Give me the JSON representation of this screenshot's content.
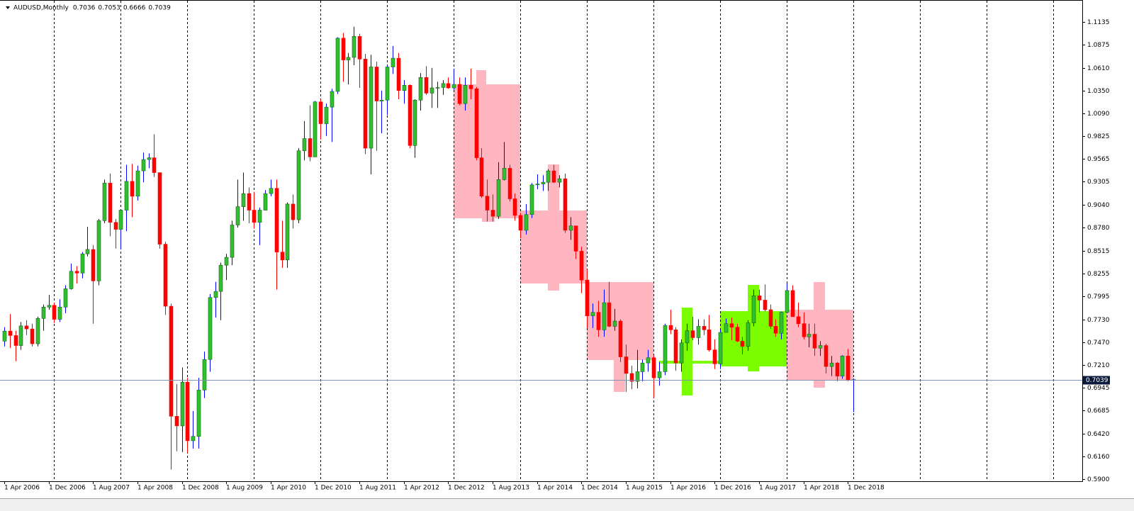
{
  "chart_data": {
    "type": "candlestick",
    "title": "AUDUSD,Monthly",
    "up_color": "#2fbf2f",
    "down_color": "#ff0000",
    "up_wick_color": "#0000ff",
    "price_line_color": "#7f93b0",
    "ylim": [
      0.5876,
      1.1346
    ],
    "yticks": [
      1.1135,
      1.0875,
      {
        "value": 1.061,
        "label": "1.0610"
      },
      {
        "value": 1.035,
        "label": "1.0350"
      },
      {
        "value": 1.009,
        "label": "1.0090"
      },
      0.9825,
      0.9565,
      0.9305,
      {
        "value": 0.904,
        "label": "0.9040"
      },
      {
        "value": 0.878,
        "label": "0.8780"
      },
      0.8515,
      0.8255,
      0.7995,
      {
        "value": 0.773,
        "label": "0.7730"
      },
      {
        "value": 0.747,
        "label": "0.7470"
      },
      {
        "value": 0.721,
        "label": "0.7210"
      },
      0.6945,
      0.6685,
      {
        "value": 0.642,
        "label": "0.6420"
      },
      {
        "value": 0.616,
        "label": "0.6160"
      },
      {
        "value": 0.59,
        "label": "0.5900"
      }
    ],
    "categories": [
      "1 Apr 2006",
      null,
      null,
      null,
      null,
      null,
      null,
      null,
      "1 Dec 2006",
      null,
      null,
      null,
      null,
      null,
      null,
      null,
      "1 Aug 2007",
      null,
      null,
      null,
      null,
      null,
      null,
      null,
      "1 Apr 2008",
      null,
      null,
      null,
      null,
      null,
      null,
      null,
      "1 Dec 2008",
      null,
      null,
      null,
      null,
      null,
      null,
      null,
      "1 Aug 2009",
      null,
      null,
      null,
      null,
      null,
      null,
      null,
      "1 Apr 2010",
      null,
      null,
      null,
      null,
      null,
      null,
      null,
      "1 Dec 2010",
      null,
      null,
      null,
      null,
      null,
      null,
      null,
      "1 Aug 2011",
      null,
      null,
      null,
      null,
      null,
      null,
      null,
      "1 Apr 2012",
      null,
      null,
      null,
      null,
      null,
      null,
      null,
      "1 Dec 2012",
      null,
      null,
      null,
      null,
      null,
      null,
      null,
      "1 Aug 2013",
      null,
      null,
      null,
      null,
      null,
      null,
      null,
      "1 Apr 2014",
      null,
      null,
      null,
      null,
      null,
      null,
      null,
      "1 Dec 2014",
      null,
      null,
      null,
      null,
      null,
      null,
      null,
      "1 Aug 2015",
      null,
      null,
      null,
      null,
      null,
      null,
      null,
      "1 Apr 2016",
      null,
      null,
      null,
      null,
      null,
      null,
      null,
      "1 Dec 2016",
      null,
      null,
      null,
      null,
      null,
      null,
      null,
      "1 Aug 2017",
      null,
      null,
      null,
      null,
      null,
      null,
      null,
      "1 Apr 2018",
      null,
      null,
      null,
      null,
      null,
      null,
      null,
      "1 Dec 2018",
      null
    ],
    "open": [
      0.748,
      0.7595,
      0.7545,
      0.743,
      0.7655,
      0.762,
      0.745,
      0.774,
      0.787,
      0.789,
      0.773,
      0.787,
      0.808,
      0.828,
      0.826,
      0.848,
      0.853,
      0.817,
      0.886,
      0.929,
      0.884,
      0.876,
      0.898,
      0.931,
      0.914,
      0.943,
      0.956,
      0.958,
      0.941,
      0.859,
      0.788,
      0.662,
      0.651,
      0.701,
      0.634,
      0.639,
      0.692,
      0.727,
      0.798,
      0.805,
      0.835,
      0.844,
      0.881,
      0.902,
      0.917,
      0.898,
      0.884,
      0.898,
      0.917,
      0.923,
      0.85,
      0.841,
      0.905,
      0.887,
      0.966,
      0.98,
      0.959,
      1.022,
      0.997,
      1.016,
      1.034,
      1.095,
      1.07,
      1.073,
      1.097,
      1.071,
      0.969,
      1.062,
      1.023,
      1.024,
      1.062,
      1.072,
      1.035,
      1.041,
      0.972,
      1.024,
      1.05,
      1.032,
      1.038,
      1.0385,
      1.043,
      1.038,
      1.042,
      1.02,
      1.041,
      1.037,
      0.958,
      0.914,
      0.898,
      0.891,
      0.933,
      0.946,
      0.911,
      0.892,
      0.875,
      0.893,
      0.927,
      0.928,
      0.93,
      0.943,
      0.93,
      0.934,
      0.875,
      0.88,
      0.851,
      0.818,
      0.777,
      0.781,
      0.761,
      0.792,
      0.765,
      0.771,
      0.73,
      0.711,
      0.702,
      0.713,
      0.723,
      0.729,
      0.706,
      0.713,
      0.766,
      0.761,
      0.723,
      0.746,
      0.76,
      0.752,
      0.765,
      0.761,
      0.738,
      0.722,
      0.758,
      0.768,
      0.764,
      0.748,
      0.742,
      0.769,
      0.8,
      0.795,
      0.784,
      0.765,
      0.757,
      0.781,
      0.806,
      0.776,
      0.768,
      0.753,
      0.756,
      0.74,
      0.743,
      0.719,
      0.723,
      0.708,
      0.731,
      0.7036
    ],
    "high": [
      0.764,
      0.779,
      0.76,
      0.77,
      0.772,
      0.768,
      0.776,
      0.79,
      0.801,
      0.792,
      0.796,
      0.812,
      0.837,
      0.834,
      0.85,
      0.879,
      0.858,
      0.888,
      0.933,
      0.94,
      0.888,
      0.899,
      0.95,
      0.951,
      0.949,
      0.964,
      0.963,
      0.985,
      0.941,
      0.862,
      0.791,
      0.699,
      0.718,
      0.706,
      0.668,
      0.706,
      0.736,
      0.802,
      0.816,
      0.838,
      0.848,
      0.886,
      0.933,
      0.941,
      0.924,
      0.919,
      0.901,
      0.921,
      0.933,
      0.933,
      0.886,
      0.907,
      0.916,
      0.969,
      1.0,
      1.018,
      1.023,
      1.025,
      1.02,
      1.037,
      1.096,
      1.101,
      1.078,
      1.108,
      1.1,
      1.077,
      1.076,
      1.068,
      1.035,
      1.064,
      1.086,
      1.078,
      1.047,
      1.042,
      1.025,
      1.055,
      1.063,
      1.061,
      1.045,
      1.047,
      1.05,
      1.06,
      1.05,
      1.05,
      1.06,
      1.039,
      0.969,
      0.933,
      0.916,
      0.953,
      0.976,
      0.95,
      0.917,
      0.895,
      0.905,
      0.929,
      0.939,
      0.938,
      0.945,
      0.95,
      0.938,
      0.94,
      0.89,
      0.88,
      0.856,
      0.83,
      0.791,
      0.794,
      0.807,
      0.816,
      0.785,
      0.773,
      0.744,
      0.72,
      0.738,
      0.727,
      0.738,
      0.732,
      0.724,
      0.768,
      0.784,
      0.764,
      0.75,
      0.768,
      0.776,
      0.773,
      0.773,
      0.778,
      0.75,
      0.761,
      0.774,
      0.775,
      0.768,
      0.753,
      0.772,
      0.807,
      0.807,
      0.813,
      0.79,
      0.773,
      0.782,
      0.814,
      0.812,
      0.792,
      0.781,
      0.768,
      0.768,
      0.748,
      0.745,
      0.731,
      0.724,
      0.732,
      0.739,
      0.7053
    ],
    "low": [
      0.742,
      0.74,
      0.725,
      0.738,
      0.755,
      0.742,
      0.742,
      0.76,
      0.784,
      0.769,
      0.77,
      0.78,
      0.807,
      0.814,
      0.82,
      0.845,
      0.768,
      0.812,
      0.883,
      0.868,
      0.854,
      0.853,
      0.874,
      0.89,
      0.909,
      0.93,
      0.946,
      0.936,
      0.854,
      0.778,
      0.601,
      0.622,
      0.621,
      0.62,
      0.625,
      0.625,
      0.683,
      0.713,
      0.775,
      0.772,
      0.818,
      0.835,
      0.878,
      0.886,
      0.883,
      0.877,
      0.858,
      0.899,
      0.914,
      0.807,
      0.832,
      0.832,
      0.877,
      0.883,
      0.955,
      0.954,
      0.96,
      0.979,
      0.983,
      0.976,
      1.031,
      1.045,
      1.042,
      1.064,
      1.038,
      0.962,
      0.939,
      0.966,
      0.986,
      1.007,
      1.054,
      1.025,
      1.02,
      0.969,
      0.958,
      1.012,
      1.03,
      1.015,
      1.015,
      1.03,
      1.037,
      1.036,
      1.018,
      1.012,
      1.025,
      0.955,
      0.912,
      0.885,
      0.885,
      0.888,
      0.932,
      0.908,
      0.886,
      0.866,
      0.87,
      0.889,
      0.922,
      0.92,
      0.92,
      0.929,
      0.924,
      0.872,
      0.864,
      0.842,
      0.803,
      0.763,
      0.763,
      0.753,
      0.753,
      0.764,
      0.76,
      0.724,
      0.69,
      0.693,
      0.694,
      0.702,
      0.713,
      0.683,
      0.697,
      0.709,
      0.756,
      0.714,
      0.713,
      0.737,
      0.749,
      0.744,
      0.755,
      0.736,
      0.716,
      0.716,
      0.758,
      0.749,
      0.747,
      0.733,
      0.737,
      0.765,
      0.781,
      0.782,
      0.762,
      0.753,
      0.75,
      0.781,
      0.776,
      0.764,
      0.75,
      0.741,
      0.731,
      0.731,
      0.711,
      0.708,
      0.702,
      0.705,
      0.702,
      0.6666
    ],
    "close": [
      0.7595,
      0.7545,
      0.743,
      0.7655,
      0.762,
      0.745,
      0.774,
      0.787,
      0.789,
      0.773,
      0.787,
      0.808,
      0.828,
      0.826,
      0.848,
      0.853,
      0.817,
      0.886,
      0.929,
      0.884,
      0.876,
      0.898,
      0.931,
      0.914,
      0.943,
      0.956,
      0.958,
      0.941,
      0.859,
      0.788,
      0.662,
      0.651,
      0.701,
      0.634,
      0.639,
      0.692,
      0.727,
      0.798,
      0.805,
      0.835,
      0.844,
      0.881,
      0.902,
      0.917,
      0.898,
      0.884,
      0.898,
      0.917,
      0.923,
      0.85,
      0.841,
      0.905,
      0.887,
      0.966,
      0.98,
      0.959,
      1.022,
      0.997,
      1.016,
      1.034,
      1.095,
      1.07,
      1.073,
      1.097,
      1.071,
      0.969,
      1.062,
      1.023,
      1.024,
      1.062,
      1.072,
      1.035,
      1.041,
      0.972,
      1.024,
      1.05,
      1.032,
      1.038,
      1.0385,
      1.043,
      1.038,
      1.042,
      1.02,
      1.041,
      1.037,
      0.958,
      0.914,
      0.898,
      0.891,
      0.933,
      0.946,
      0.911,
      0.892,
      0.875,
      0.893,
      0.927,
      0.928,
      0.93,
      0.943,
      0.93,
      0.934,
      0.875,
      0.88,
      0.851,
      0.818,
      0.777,
      0.781,
      0.761,
      0.792,
      0.765,
      0.771,
      0.73,
      0.711,
      0.702,
      0.713,
      0.723,
      0.729,
      0.706,
      0.713,
      0.766,
      0.761,
      0.723,
      0.746,
      0.76,
      0.752,
      0.765,
      0.761,
      0.738,
      0.722,
      0.758,
      0.768,
      0.764,
      0.748,
      0.742,
      0.769,
      0.8,
      0.795,
      0.784,
      0.765,
      0.757,
      0.781,
      0.806,
      0.776,
      0.768,
      0.753,
      0.756,
      0.74,
      0.743,
      0.719,
      0.723,
      0.708,
      0.731,
      0.7036,
      0.7039
    ]
  }
}
